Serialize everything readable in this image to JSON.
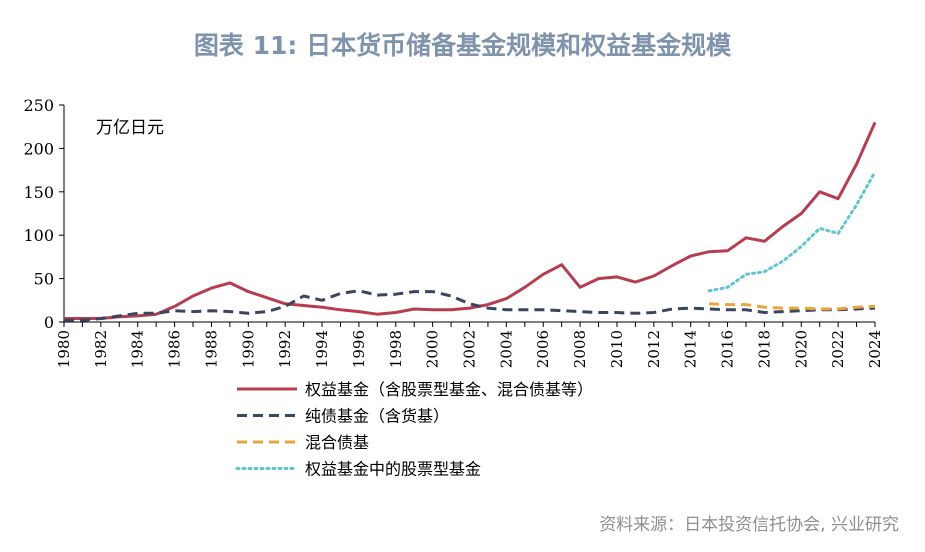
{
  "title": "图表 11: 日本货币储备基金规模和权益基金规模",
  "source": "资料来源：日本投资信托协会, 兴业研究",
  "chart_data": {
    "type": "line",
    "unit_label": "万亿日元",
    "ylim": [
      0,
      250
    ],
    "yticks": [
      0,
      50,
      100,
      150,
      200,
      250
    ],
    "xlim": [
      1980,
      2024
    ],
    "xticks": [
      1980,
      1982,
      1984,
      1986,
      1988,
      1990,
      1992,
      1994,
      1996,
      1998,
      2000,
      2002,
      2004,
      2006,
      2008,
      2010,
      2012,
      2014,
      2016,
      2018,
      2020,
      2022,
      2024
    ],
    "grid": false,
    "legend_position": "bottom",
    "series": [
      {
        "name": "权益基金（含股票型基金、混合债基等）",
        "color": "#b83c4f",
        "style": "solid",
        "x": [
          1980,
          1981,
          1982,
          1983,
          1984,
          1985,
          1986,
          1987,
          1988,
          1989,
          1990,
          1991,
          1992,
          1993,
          1994,
          1995,
          1996,
          1997,
          1998,
          1999,
          2000,
          2001,
          2002,
          2003,
          2004,
          2005,
          2006,
          2007,
          2008,
          2009,
          2010,
          2011,
          2012,
          2013,
          2014,
          2015,
          2016,
          2017,
          2018,
          2019,
          2020,
          2021,
          2022,
          2023,
          2024
        ],
        "values": [
          4,
          4,
          4,
          6,
          7,
          9,
          18,
          30,
          39,
          45,
          35,
          28,
          21,
          19,
          17,
          14,
          12,
          9,
          11,
          15,
          14,
          14,
          16,
          20,
          27,
          40,
          55,
          66,
          40,
          50,
          52,
          46,
          53,
          65,
          76,
          81,
          82,
          97,
          93,
          110,
          125,
          150,
          142,
          182,
          230
        ]
      },
      {
        "name": "纯债基金（含货基）",
        "color": "#3a4660",
        "style": "dashed",
        "x": [
          1980,
          1981,
          1982,
          1983,
          1984,
          1985,
          1986,
          1987,
          1988,
          1989,
          1990,
          1991,
          1992,
          1993,
          1994,
          1995,
          1996,
          1997,
          1998,
          1999,
          2000,
          2001,
          2002,
          2003,
          2004,
          2005,
          2006,
          2007,
          2008,
          2009,
          2010,
          2011,
          2012,
          2013,
          2014,
          2015,
          2016,
          2017,
          2018,
          2019,
          2020,
          2021,
          2022,
          2023,
          2024
        ],
        "values": [
          2,
          2,
          4,
          7,
          10,
          10,
          13,
          12,
          13,
          12,
          10,
          12,
          18,
          30,
          25,
          33,
          36,
          31,
          32,
          35,
          35,
          30,
          21,
          16,
          14,
          14,
          14,
          13,
          12,
          11,
          11,
          10,
          11,
          15,
          16,
          15,
          14,
          14,
          11,
          12,
          13,
          14,
          14,
          15,
          16
        ]
      },
      {
        "name": "混合债基",
        "color": "#e9a43b",
        "style": "dashed",
        "x": [
          2015,
          2016,
          2017,
          2018,
          2019,
          2020,
          2021,
          2022,
          2023,
          2024
        ],
        "values": [
          21,
          20,
          20,
          17,
          16,
          16,
          15,
          15,
          17,
          18
        ]
      },
      {
        "name": "权益基金中的股票型基金",
        "color": "#5fc6cc",
        "style": "dotted",
        "x": [
          2015,
          2016,
          2017,
          2018,
          2019,
          2020,
          2021,
          2022,
          2023,
          2024
        ],
        "values": [
          36,
          40,
          55,
          58,
          70,
          87,
          108,
          102,
          135,
          173
        ]
      }
    ]
  }
}
